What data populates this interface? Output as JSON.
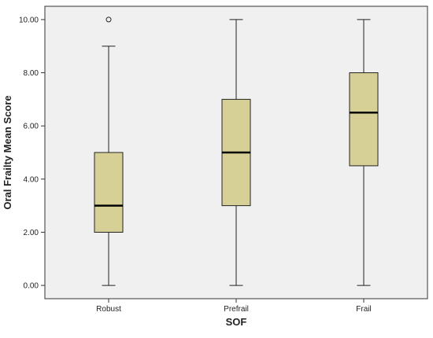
{
  "chart_data": {
    "type": "boxplot",
    "xlabel": "SOF",
    "ylabel": "Oral Frailty Mean Score",
    "ylim": [
      -0.5,
      10.5
    ],
    "yticks": [
      "0.00",
      "2.00",
      "4.00",
      "6.00",
      "8.00",
      "10.00"
    ],
    "ytick_values": [
      0,
      2,
      4,
      6,
      8,
      10
    ],
    "grid": false,
    "categories": [
      "Robust",
      "Prefrail",
      "Frail"
    ],
    "boxes": [
      {
        "category": "Robust",
        "min": 0,
        "q1": 2,
        "median": 3,
        "q3": 5,
        "max": 9,
        "outliers": [
          10
        ]
      },
      {
        "category": "Prefrail",
        "min": 0,
        "q1": 3,
        "median": 5,
        "q3": 7,
        "max": 10,
        "outliers": []
      },
      {
        "category": "Frail",
        "min": 0,
        "q1": 4.5,
        "median": 6.5,
        "q3": 8,
        "max": 10,
        "outliers": []
      }
    ],
    "colors": {
      "box_fill": "#d6d096",
      "plot_bg": "#f0f0f0",
      "line": "#222222"
    }
  }
}
